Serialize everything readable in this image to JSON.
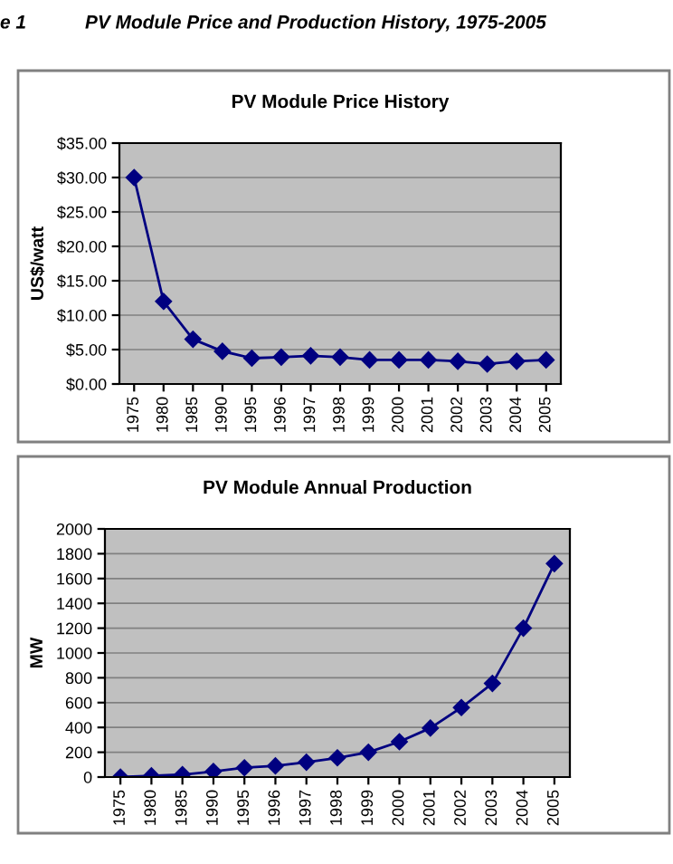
{
  "chart_data": [
    {
      "type": "line",
      "title": "PV Module Price History",
      "ylabel": "US$/watt",
      "annotations": [
        "e 1",
        "PV Module Price and Production History, 1975-2005"
      ],
      "categories": [
        "1975",
        "1980",
        "1985",
        "1990",
        "1995",
        "1996",
        "1997",
        "1998",
        "1999",
        "2000",
        "2001",
        "2002",
        "2003",
        "2004",
        "2005"
      ],
      "series": [
        {
          "color": "#000080",
          "values": [
            30,
            12,
            6.5,
            4.75,
            3.75,
            3.9,
            4.1,
            3.9,
            3.5,
            3.5,
            3.5,
            3.3,
            2.9,
            3.3,
            3.5
          ]
        }
      ],
      "ylim": [
        0,
        35
      ],
      "yticks": [
        {
          "value": 0,
          "label": "$0.00"
        },
        {
          "value": 5,
          "label": "$5.00"
        },
        {
          "value": 10,
          "label": "$10.00"
        },
        {
          "value": 15,
          "label": "$15.00"
        },
        {
          "value": 20,
          "label": "$20.00"
        },
        {
          "value": 25,
          "label": "$25.00"
        },
        {
          "value": 30,
          "label": "$30.00"
        },
        {
          "value": 35,
          "label": "$35.00"
        }
      ],
      "grid": "y",
      "legend": false,
      "marker": "diamond",
      "line_style": "solid"
    },
    {
      "type": "line",
      "title": "PV Module Annual Production",
      "ylabel": "MW",
      "categories": [
        "1975",
        "1980",
        "1985",
        "1990",
        "1995",
        "1996",
        "1997",
        "1998",
        "1999",
        "2000",
        "2001",
        "2002",
        "2003",
        "2004",
        "2005"
      ],
      "series": [
        {
          "color": "#000080",
          "values": [
            0,
            10,
            20,
            45,
            75,
            90,
            120,
            155,
            200,
            285,
            395,
            560,
            755,
            1200,
            1720
          ]
        }
      ],
      "ylim": [
        0,
        2000
      ],
      "yticks": [
        0,
        200,
        400,
        600,
        800,
        1000,
        1200,
        1400,
        1600,
        1800,
        2000
      ],
      "grid": "y",
      "legend": false,
      "marker": "diamond",
      "line_style": "solid"
    }
  ]
}
